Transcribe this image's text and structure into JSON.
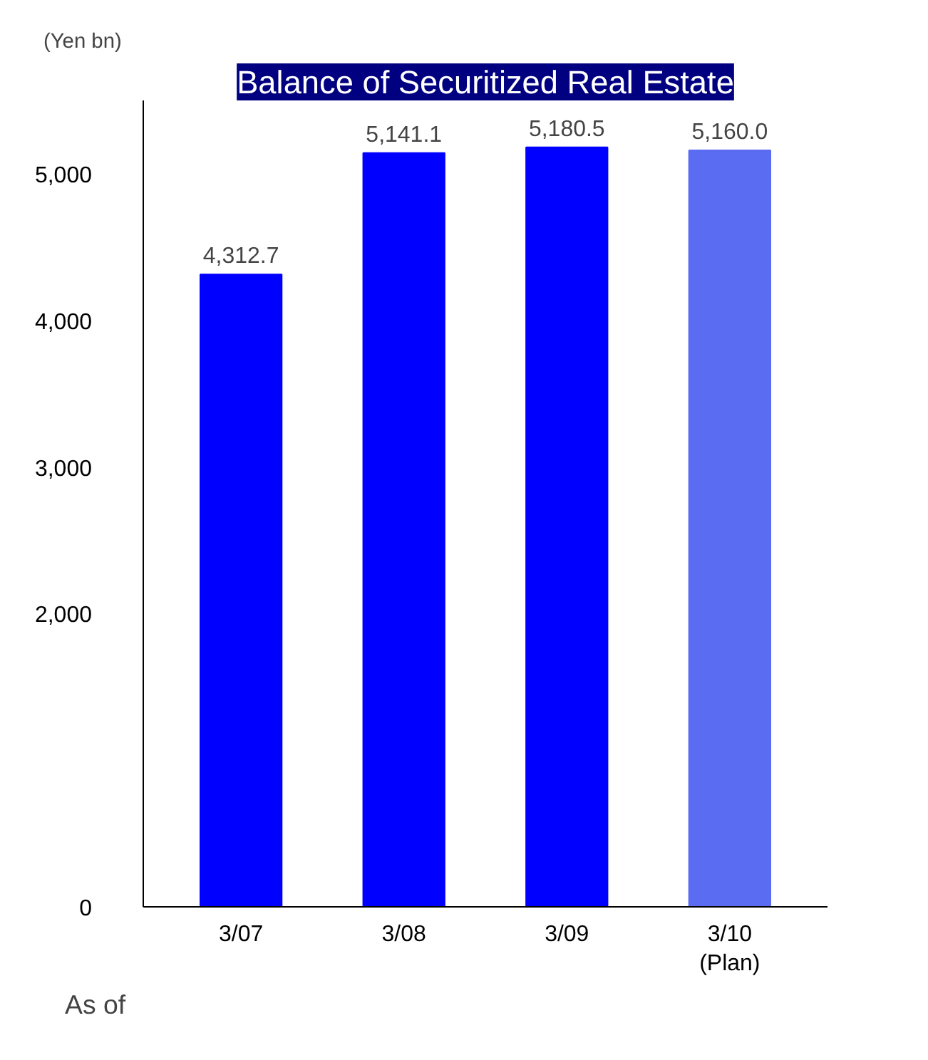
{
  "chart_data": {
    "type": "bar",
    "title": "Balance of Securitized Real Estate",
    "ylabel": "(Yen bn)",
    "categories": [
      "3/07",
      "3/08",
      "3/09",
      "3/10\n(Plan)"
    ],
    "values": [
      4312.7,
      5141.1,
      5180.5,
      5160.0
    ],
    "colors": [
      "#0000ff",
      "#0000ff",
      "#0000ff",
      "#5a6cf2"
    ],
    "ylim": [
      0,
      5500
    ],
    "yticks": [
      0,
      {
        "value": 2000,
        "label": "2,000"
      },
      {
        "value": 3000,
        "label": "3,000"
      },
      {
        "value": 4000,
        "label": "4,000"
      },
      {
        "value": 5000,
        "label": "5,000"
      }
    ],
    "data_labels": true,
    "value_labels": [
      "4,312.7",
      "5,141.1",
      "5,180.5",
      "5,160.0"
    ],
    "annotations": [
      "As of"
    ],
    "grid": false
  }
}
